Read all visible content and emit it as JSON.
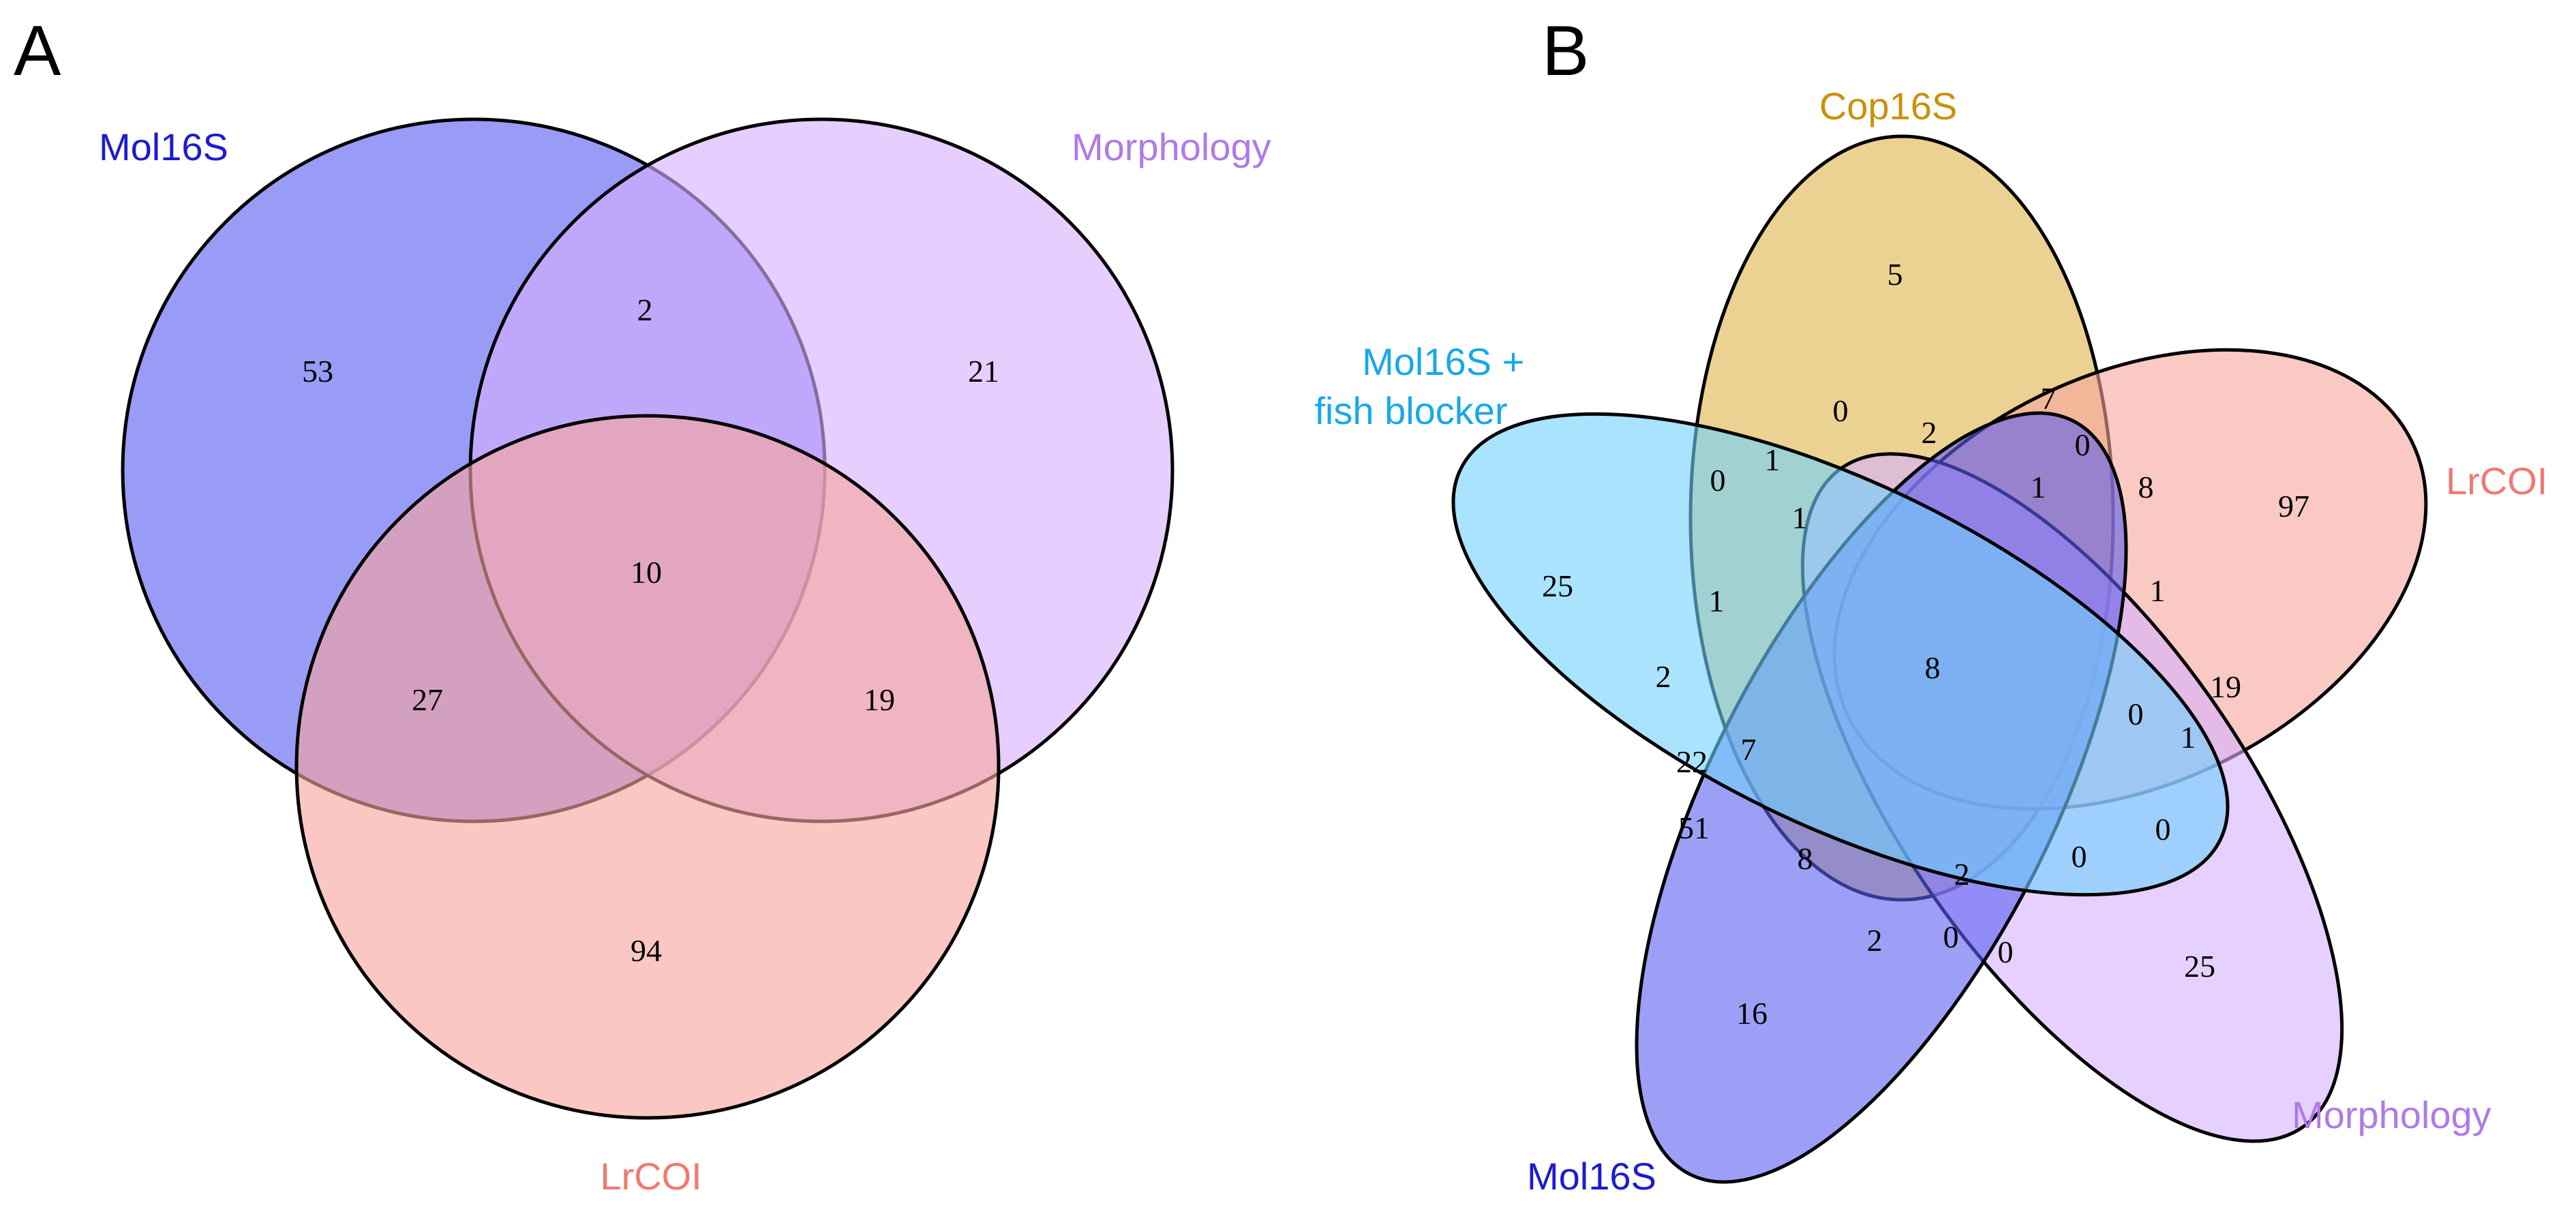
{
  "panel_a": {
    "letter": "A",
    "sets": [
      {
        "id": "mol16s",
        "label": "Mol16S",
        "label_color": "#1b1bd0",
        "fill": "#5b5ff0"
      },
      {
        "id": "morphology",
        "label": "Morphology",
        "label_color": "#b07ae8",
        "fill": "#d6b0ff"
      },
      {
        "id": "lrcoi",
        "label": "LrCOI",
        "label_color": "#f07a70",
        "fill": "#f7a59c"
      }
    ],
    "regions": [
      {
        "sets": [
          "mol16s"
        ],
        "count": "53"
      },
      {
        "sets": [
          "morphology"
        ],
        "count": "21"
      },
      {
        "sets": [
          "mol16s",
          "morphology"
        ],
        "count": "2"
      },
      {
        "sets": [
          "mol16s",
          "morphology",
          "lrcoi"
        ],
        "count": "10"
      },
      {
        "sets": [
          "mol16s",
          "lrcoi"
        ],
        "count": "27"
      },
      {
        "sets": [
          "morphology",
          "lrcoi"
        ],
        "count": "19"
      },
      {
        "sets": [
          "lrcoi"
        ],
        "count": "94"
      }
    ]
  },
  "panel_b": {
    "letter": "B",
    "sets": [
      {
        "id": "cop16s",
        "label": "Cop16S",
        "label_color": "#c8920a",
        "fill": "#ddb44a"
      },
      {
        "id": "lrcoi",
        "label": "LrCOI",
        "label_color": "#f07a70",
        "fill": "#f7a59c"
      },
      {
        "id": "morphology",
        "label": "Morphology",
        "label_color": "#b07ae8",
        "fill": "#d6b0ff"
      },
      {
        "id": "mol16s",
        "label": "Mol16S",
        "label_color": "#1b1bd0",
        "fill": "#5b5ff0"
      },
      {
        "id": "mol16s_fish",
        "label_lines": [
          "Mol16S +",
          "fish blocker"
        ],
        "label_color": "#18a8ea",
        "fill": "#6fd0fb"
      }
    ],
    "counts": [
      "5",
      "7",
      "97",
      "25",
      "16",
      "25",
      "0",
      "1",
      "0",
      "0",
      "2",
      "1",
      "8",
      "1",
      "1",
      "1",
      "19",
      "2",
      "1",
      "0",
      "22",
      "7",
      "8",
      "51",
      "8",
      "2",
      "0",
      "2",
      "0",
      "0",
      "0"
    ]
  }
}
